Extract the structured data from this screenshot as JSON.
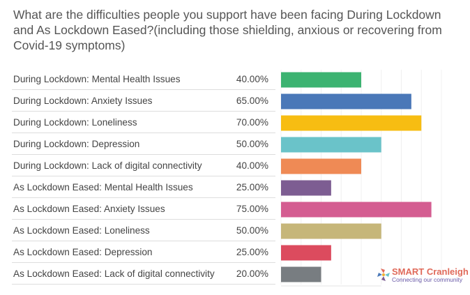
{
  "chart_data": {
    "type": "bar",
    "orientation": "horizontal",
    "title": "What are the difficulties people you support have been facing During Lockdown and As Lockdown Eased?(including those shielding, anxious or recovering from Covid-19 symptoms)",
    "categories": [
      "During Lockdown: Mental Health Issues",
      "During Lockdown: Anxiety Issues",
      "During Lockdown: Loneliness",
      "During Lockdown: Depression",
      "During Lockdown: Lack of digital connectivity",
      "As Lockdown Eased: Mental Health Issues",
      "As Lockdown Eased: Anxiety Issues",
      "As Lockdown Eased: Loneliness",
      "As Lockdown Eased: Depression",
      "As Lockdown Eased: Lack of digital connectivity"
    ],
    "values": [
      40,
      65,
      70,
      50,
      40,
      25,
      75,
      50,
      25,
      20
    ],
    "value_labels": [
      "40.00%",
      "65.00%",
      "70.00%",
      "50.00%",
      "40.00%",
      "25.00%",
      "75.00%",
      "50.00%",
      "25.00%",
      "20.00%"
    ],
    "colors": [
      "#3cb371",
      "#4a78b8",
      "#f7bd12",
      "#6ac3c9",
      "#ef8a55",
      "#7d5d92",
      "#d45d91",
      "#c6b679",
      "#dc4b5e",
      "#787d81"
    ],
    "xlim": [
      0,
      100
    ],
    "grid": true,
    "xlabel": "",
    "ylabel": ""
  },
  "logo": {
    "name": "SMART Cranleigh",
    "tagline": "Connecting our community"
  }
}
